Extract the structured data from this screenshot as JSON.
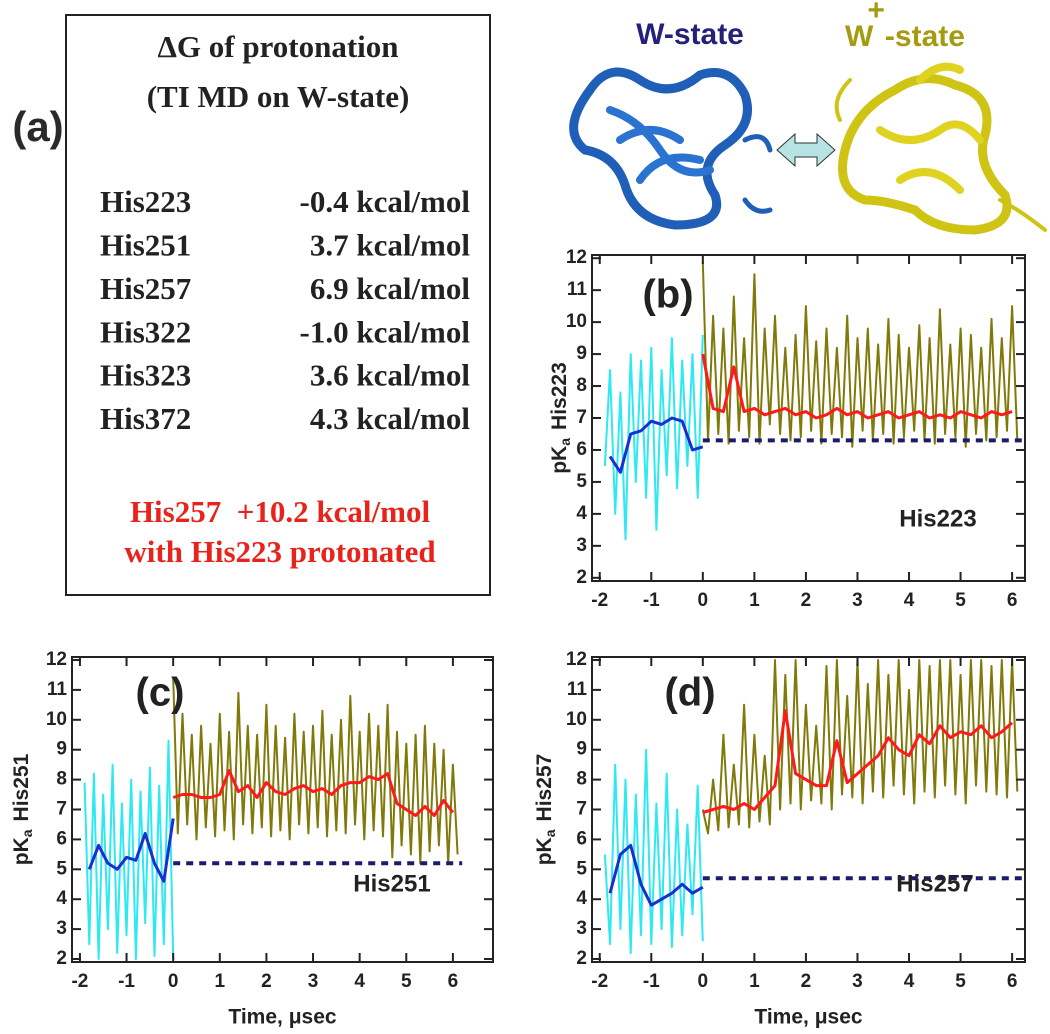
{
  "panel_a": {
    "label": "(a)",
    "title": "ΔG of protonation",
    "subtitle": "(TI MD on W-state)",
    "rows": [
      [
        "His223",
        "-0.4 kcal/mol"
      ],
      [
        "His251",
        "3.7 kcal/mol"
      ],
      [
        "His257",
        "6.9 kcal/mol"
      ],
      [
        "His322",
        "-1.0 kcal/mol"
      ],
      [
        "His323",
        "3.6 kcal/mol"
      ],
      [
        "His372",
        "4.3 kcal/mol"
      ]
    ],
    "note": [
      "His257  +10.2 kcal/mol",
      "with His223 protonated"
    ]
  },
  "header": {
    "w_state": "W-state",
    "w_plus_state": {
      "w": "W",
      "sup": "+",
      "rest": "-state"
    }
  },
  "chart_data": [
    {
      "type": "line",
      "label": "(b)",
      "residue": "His223",
      "y_label": [
        "pK",
        "a",
        "His223"
      ],
      "xlim": [
        -2.15,
        6.25
      ],
      "ylim": [
        1.9,
        12.1
      ],
      "xticks": [
        -2,
        -1,
        0,
        1,
        2,
        3,
        4,
        5,
        6
      ],
      "yticks": [
        2,
        3,
        4,
        5,
        6,
        7,
        8,
        9,
        10,
        11,
        12
      ],
      "series": [
        {
          "color": "#2ee8f2",
          "width": 2,
          "x": [
            -1.9,
            -1.8,
            -1.7,
            -1.6,
            -1.5,
            -1.4,
            -1.3,
            -1.2,
            -1.1,
            -1.0,
            -0.9,
            -0.8,
            -0.7,
            -0.6,
            -0.5,
            -0.4,
            -0.3,
            -0.2,
            -0.1,
            0
          ],
          "values": [
            5.5,
            8.5,
            4,
            7.8,
            3.2,
            9,
            5,
            8.8,
            4.5,
            9.2,
            3.5,
            8.5,
            5.2,
            9.5,
            4.8,
            8.8,
            5.5,
            9,
            4.5,
            9.6
          ]
        },
        {
          "color": "#807a0a",
          "width": 2,
          "x": [
            0,
            0.1,
            0.2,
            0.3,
            0.4,
            0.5,
            0.6,
            0.7,
            0.8,
            0.9,
            1.0,
            1.1,
            1.2,
            1.3,
            1.4,
            1.5,
            1.6,
            1.7,
            1.8,
            1.9,
            2.0,
            2.1,
            2.2,
            2.3,
            2.4,
            2.5,
            2.6,
            2.7,
            2.8,
            2.9,
            3.0,
            3.1,
            3.2,
            3.3,
            3.4,
            3.5,
            3.6,
            3.7,
            3.8,
            3.9,
            4.0,
            4.1,
            4.2,
            4.3,
            4.4,
            4.5,
            4.6,
            4.7,
            4.8,
            4.9,
            5.0,
            5.1,
            5.2,
            5.3,
            5.4,
            5.5,
            5.6,
            5.7,
            5.8,
            5.9,
            6.0,
            6.1
          ],
          "values": [
            11.9,
            6.3,
            10.2,
            6.5,
            9.8,
            6.2,
            10.8,
            6.6,
            9.5,
            6.4,
            11.5,
            6.2,
            9.8,
            6.8,
            10.2,
            6.5,
            9.2,
            6.3,
            9.6,
            6.4,
            10.5,
            6.6,
            9.4,
            6.2,
            9.8,
            6.5,
            9.2,
            6.4,
            10.2,
            6.1,
            9.5,
            6.6,
            9.8,
            6.3,
            9.3,
            6.5,
            10.1,
            6.2,
            9.6,
            6.4,
            9.2,
            6.6,
            9.9,
            6.3,
            9.5,
            6.2,
            10.4,
            6.5,
            9.3,
            6.4,
            9.8,
            6.1,
            9.6,
            6.5,
            9.2,
            6.3,
            10.1,
            6.4,
            9.5,
            6.6,
            10.5,
            6.3
          ]
        },
        {
          "color": "#1c1c6b",
          "width": 4,
          "dash": true,
          "x": [
            0,
            6.25
          ],
          "values": [
            6.3,
            6.3
          ]
        },
        {
          "color": "#1a2fd0",
          "width": 3,
          "x": [
            -1.8,
            -1.6,
            -1.4,
            -1.2,
            -1.0,
            -0.8,
            -0.6,
            -0.4,
            -0.2,
            0
          ],
          "values": [
            5.8,
            5.3,
            6.5,
            6.6,
            6.9,
            6.8,
            7.0,
            6.9,
            6.0,
            6.1
          ]
        },
        {
          "color": "#ff1a1a",
          "width": 3,
          "x": [
            0,
            0.2,
            0.4,
            0.6,
            0.8,
            1.0,
            1.2,
            1.4,
            1.6,
            1.8,
            2.0,
            2.2,
            2.4,
            2.6,
            2.8,
            3.0,
            3.2,
            3.4,
            3.6,
            3.8,
            4.0,
            4.2,
            4.4,
            4.6,
            4.8,
            5.0,
            5.2,
            5.4,
            5.6,
            5.8,
            6.0
          ],
          "values": [
            9.0,
            7.3,
            7.2,
            8.6,
            7.2,
            7.3,
            7.1,
            7.2,
            7.3,
            7.1,
            7.2,
            7.0,
            7.1,
            7.3,
            7.1,
            7.2,
            7.0,
            7.1,
            7.2,
            7.0,
            7.1,
            7.2,
            7.0,
            7.1,
            7.0,
            7.2,
            7.1,
            7.0,
            7.2,
            7.1,
            7.2
          ]
        }
      ]
    },
    {
      "type": "line",
      "label": "(c)",
      "residue": "His251",
      "y_label": [
        "pK",
        "a",
        "His251"
      ],
      "x_label": "Time, μsec",
      "xlim": [
        -2.17,
        6.86
      ],
      "ylim": [
        1.9,
        12.1
      ],
      "xticks": [
        -2,
        -1,
        0,
        1,
        2,
        3,
        4,
        5,
        6
      ],
      "yticks": [
        2,
        3,
        4,
        5,
        6,
        7,
        8,
        9,
        10,
        11,
        12
      ],
      "series": [
        {
          "color": "#2ee8f2",
          "width": 2,
          "x": [
            -1.9,
            -1.8,
            -1.7,
            -1.6,
            -1.5,
            -1.4,
            -1.3,
            -1.2,
            -1.1,
            -1.0,
            -0.9,
            -0.8,
            -0.7,
            -0.6,
            -0.5,
            -0.4,
            -0.3,
            -0.2,
            -0.1,
            0
          ],
          "values": [
            7.9,
            2.5,
            8.2,
            2.0,
            7.5,
            3.0,
            8.5,
            2.2,
            7.2,
            2.8,
            8.0,
            2.0,
            7.6,
            3.2,
            8.4,
            2.1,
            7.8,
            2.5,
            9.3,
            2.0
          ]
        },
        {
          "color": "#807a0a",
          "width": 2,
          "x": [
            0,
            0.1,
            0.2,
            0.3,
            0.4,
            0.5,
            0.6,
            0.7,
            0.8,
            0.9,
            1.0,
            1.1,
            1.2,
            1.3,
            1.4,
            1.5,
            1.6,
            1.7,
            1.8,
            1.9,
            2.0,
            2.1,
            2.2,
            2.3,
            2.4,
            2.5,
            2.6,
            2.7,
            2.8,
            2.9,
            3.0,
            3.1,
            3.2,
            3.3,
            3.4,
            3.5,
            3.6,
            3.7,
            3.8,
            3.9,
            4.0,
            4.1,
            4.2,
            4.3,
            4.4,
            4.5,
            4.6,
            4.7,
            4.8,
            4.9,
            5.0,
            5.1,
            5.2,
            5.3,
            5.4,
            5.5,
            5.6,
            5.7,
            5.8,
            5.9,
            6.0,
            6.1
          ],
          "values": [
            11.4,
            6.2,
            10.2,
            6.5,
            9.5,
            6.0,
            9.8,
            6.4,
            9.2,
            6.1,
            10.2,
            6.3,
            9.6,
            6.0,
            10.9,
            6.5,
            9.8,
            6.2,
            9.5,
            6.4,
            10.5,
            6.1,
            9.8,
            6.3,
            9.4,
            6.0,
            10.2,
            6.5,
            9.6,
            6.2,
            9.8,
            6.4,
            10.3,
            6.1,
            9.5,
            6.3,
            10.0,
            6.2,
            10.8,
            6.5,
            9.6,
            6.0,
            10.2,
            6.3,
            9.8,
            6.1,
            10.5,
            5.4,
            9.6,
            5.8,
            9.2,
            5.5,
            9.5,
            5.2,
            9.8,
            5.6,
            9.2,
            5.8,
            9.0,
            5.2,
            8.5,
            5.5
          ]
        },
        {
          "color": "#1c1c6b",
          "width": 4,
          "dash": true,
          "x": [
            0,
            6.2
          ],
          "values": [
            5.2,
            5.2
          ]
        },
        {
          "color": "#1a2fd0",
          "width": 3,
          "x": [
            -1.8,
            -1.6,
            -1.4,
            -1.2,
            -1.0,
            -0.8,
            -0.6,
            -0.4,
            -0.2,
            0
          ],
          "values": [
            5.0,
            5.8,
            5.2,
            5.0,
            5.4,
            5.3,
            6.2,
            5.2,
            4.6,
            6.7
          ]
        },
        {
          "color": "#ff1a1a",
          "width": 3,
          "x": [
            0,
            0.2,
            0.4,
            0.6,
            0.8,
            1.0,
            1.2,
            1.4,
            1.6,
            1.8,
            2.0,
            2.2,
            2.4,
            2.6,
            2.8,
            3.0,
            3.2,
            3.4,
            3.6,
            3.8,
            4.0,
            4.2,
            4.4,
            4.6,
            4.8,
            5.0,
            5.2,
            5.4,
            5.6,
            5.8,
            6.0
          ],
          "values": [
            7.4,
            7.5,
            7.5,
            7.4,
            7.4,
            7.5,
            8.3,
            7.6,
            7.8,
            7.4,
            7.9,
            7.6,
            7.5,
            7.7,
            7.8,
            7.6,
            7.7,
            7.5,
            7.8,
            7.9,
            7.9,
            8.1,
            8.0,
            8.2,
            7.2,
            7.0,
            6.8,
            7.1,
            6.8,
            7.3,
            6.9
          ]
        }
      ]
    },
    {
      "type": "line",
      "label": "(d)",
      "residue": "His257",
      "y_label": [
        "pK",
        "a",
        "His257"
      ],
      "x_label": "Time, μsec",
      "xlim": [
        -2.15,
        6.25
      ],
      "ylim": [
        1.9,
        12.1
      ],
      "xticks": [
        -2,
        -1,
        0,
        1,
        2,
        3,
        4,
        5,
        6
      ],
      "yticks": [
        2,
        3,
        4,
        5,
        6,
        7,
        8,
        9,
        10,
        11,
        12
      ],
      "series": [
        {
          "color": "#2ee8f2",
          "width": 2,
          "x": [
            -1.9,
            -1.8,
            -1.7,
            -1.6,
            -1.5,
            -1.4,
            -1.3,
            -1.2,
            -1.1,
            -1.0,
            -0.9,
            -0.8,
            -0.7,
            -0.6,
            -0.5,
            -0.4,
            -0.3,
            -0.2,
            -0.1,
            0
          ],
          "values": [
            5.5,
            2.5,
            8.5,
            3.0,
            8.0,
            2.2,
            7.5,
            2.8,
            9.0,
            2.5,
            7.2,
            3.0,
            8.2,
            2.4,
            7.0,
            2.8,
            6.5,
            3.5,
            7.8,
            2.6
          ]
        },
        {
          "color": "#807a0a",
          "width": 2,
          "x": [
            0,
            0.1,
            0.2,
            0.3,
            0.4,
            0.5,
            0.6,
            0.7,
            0.8,
            0.9,
            1.0,
            1.1,
            1.2,
            1.3,
            1.4,
            1.5,
            1.6,
            1.7,
            1.8,
            1.9,
            2.0,
            2.1,
            2.2,
            2.3,
            2.4,
            2.5,
            2.6,
            2.7,
            2.8,
            2.9,
            3.0,
            3.1,
            3.2,
            3.3,
            3.4,
            3.5,
            3.6,
            3.7,
            3.8,
            3.9,
            4.0,
            4.1,
            4.2,
            4.3,
            4.4,
            4.5,
            4.6,
            4.7,
            4.8,
            4.9,
            5.0,
            5.1,
            5.2,
            5.3,
            5.4,
            5.5,
            5.6,
            5.7,
            5.8,
            5.9,
            6.0,
            6.1
          ],
          "values": [
            7.0,
            6.2,
            8.0,
            6.3,
            9.5,
            6.4,
            8.5,
            6.5,
            10.5,
            6.4,
            9.5,
            6.6,
            8.8,
            6.5,
            12.0,
            7.0,
            11.5,
            7.2,
            12.0,
            7.0,
            10.5,
            7.3,
            9.8,
            7.2,
            11.8,
            7.0,
            12.0,
            7.5,
            10.8,
            7.4,
            12.0,
            7.2,
            11.2,
            7.6,
            12.0,
            7.4,
            11.5,
            7.8,
            12.0,
            7.5,
            11.0,
            7.2,
            12.0,
            7.6,
            11.8,
            7.4,
            12.0,
            7.8,
            12.0,
            7.5,
            11.5,
            7.2,
            12.0,
            7.8,
            12.0,
            7.6,
            11.8,
            7.5,
            12.0,
            7.4,
            12.0,
            7.6
          ]
        },
        {
          "color": "#1c1c6b",
          "width": 4,
          "dash": true,
          "x": [
            0,
            6.25
          ],
          "values": [
            4.7,
            4.7
          ]
        },
        {
          "color": "#1a2fd0",
          "width": 3,
          "x": [
            -1.8,
            -1.6,
            -1.4,
            -1.2,
            -1.0,
            -0.8,
            -0.6,
            -0.4,
            -0.2,
            0
          ],
          "values": [
            4.2,
            5.5,
            5.8,
            4.5,
            3.8,
            4.0,
            4.2,
            4.5,
            4.2,
            4.4
          ]
        },
        {
          "color": "#ff1a1a",
          "width": 3,
          "x": [
            0,
            0.2,
            0.4,
            0.6,
            0.8,
            1.0,
            1.2,
            1.4,
            1.6,
            1.8,
            2.0,
            2.2,
            2.4,
            2.6,
            2.8,
            3.0,
            3.2,
            3.4,
            3.6,
            3.8,
            4.0,
            4.2,
            4.4,
            4.6,
            4.8,
            5.0,
            5.2,
            5.4,
            5.6,
            5.8,
            6.0
          ],
          "values": [
            6.9,
            7.0,
            7.1,
            7.0,
            7.2,
            7.0,
            7.4,
            7.8,
            10.3,
            8.2,
            8.0,
            7.8,
            7.8,
            9.3,
            7.9,
            8.2,
            8.5,
            8.8,
            9.4,
            9.0,
            8.8,
            9.5,
            9.2,
            9.8,
            9.4,
            9.6,
            9.5,
            9.8,
            9.4,
            9.6,
            9.9
          ]
        }
      ]
    }
  ]
}
